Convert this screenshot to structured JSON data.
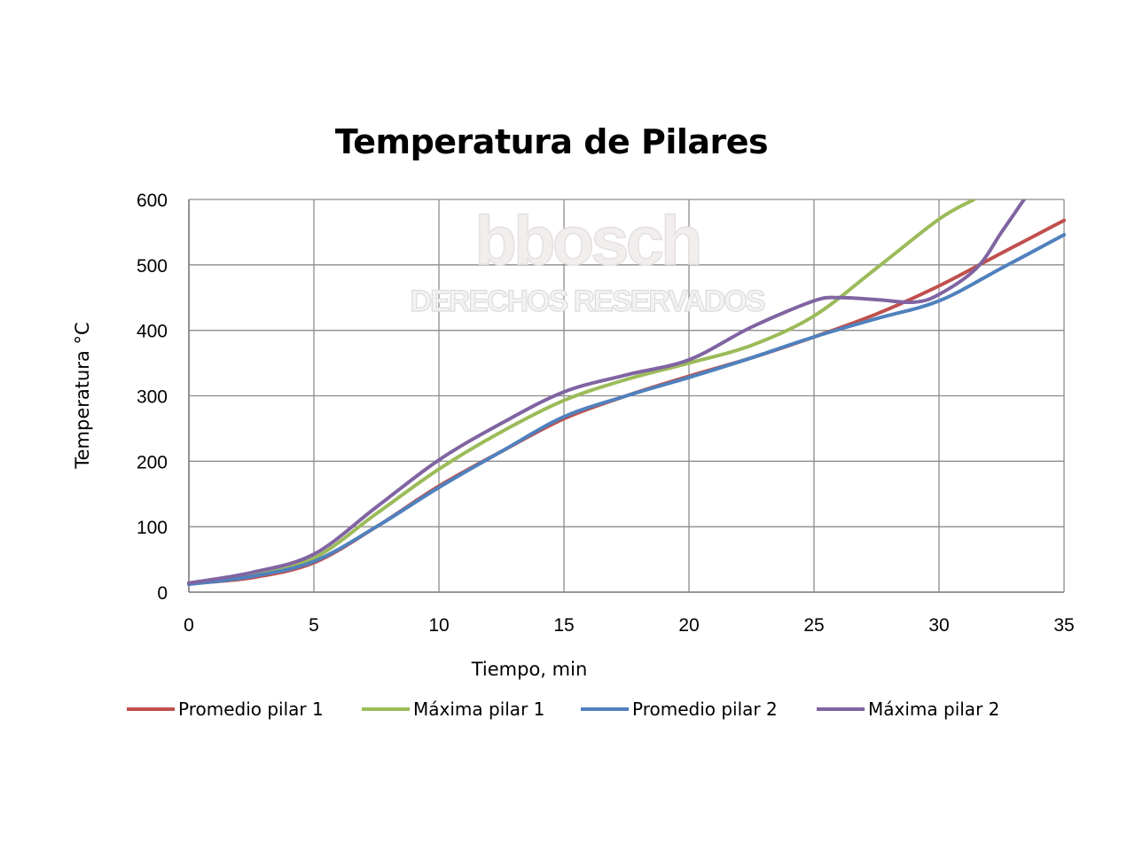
{
  "chart_data": {
    "type": "line",
    "title": "Temperatura de Pilares",
    "xlabel": "Tiempo, min",
    "ylabel": "Temperatura °C",
    "xlim": [
      0,
      35
    ],
    "ylim": [
      0,
      600
    ],
    "xticks": [
      0,
      5,
      10,
      15,
      20,
      25,
      30,
      35
    ],
    "yticks": [
      0,
      100,
      200,
      300,
      400,
      500,
      600
    ],
    "grid": true,
    "legend_position": "bottom",
    "series": [
      {
        "name": "Promedio pilar 1",
        "color": "#c0504d",
        "points": [
          [
            0,
            13
          ],
          [
            2.5,
            22
          ],
          [
            5,
            45
          ],
          [
            7.5,
            100
          ],
          [
            10,
            162
          ],
          [
            12.5,
            215
          ],
          [
            15,
            265
          ],
          [
            17.5,
            300
          ],
          [
            20,
            330
          ],
          [
            22.5,
            358
          ],
          [
            25,
            390
          ],
          [
            27.5,
            425
          ],
          [
            30,
            468
          ],
          [
            32.5,
            518
          ],
          [
            35,
            568
          ]
        ]
      },
      {
        "name": "Máxima pilar 1",
        "color": "#9bbb59",
        "points": [
          [
            0,
            14
          ],
          [
            2.5,
            27
          ],
          [
            5,
            52
          ],
          [
            7.5,
            120
          ],
          [
            10,
            188
          ],
          [
            12.5,
            245
          ],
          [
            15,
            293
          ],
          [
            17.5,
            325
          ],
          [
            20,
            350
          ],
          [
            22.5,
            377
          ],
          [
            25,
            422
          ],
          [
            27.5,
            495
          ],
          [
            30,
            570
          ],
          [
            31.4,
            600
          ]
        ]
      },
      {
        "name": "Promedio pilar 2",
        "color": "#4f81bd",
        "points": [
          [
            0,
            12
          ],
          [
            2.5,
            24
          ],
          [
            5,
            47
          ],
          [
            7.5,
            100
          ],
          [
            10,
            160
          ],
          [
            12.5,
            215
          ],
          [
            15,
            268
          ],
          [
            17.5,
            300
          ],
          [
            20,
            328
          ],
          [
            22.5,
            358
          ],
          [
            25,
            390
          ],
          [
            27.5,
            418
          ],
          [
            30,
            445
          ],
          [
            32.5,
            495
          ],
          [
            35,
            546
          ]
        ]
      },
      {
        "name": "Máxima pilar 2",
        "color": "#8064a2",
        "points": [
          [
            0,
            14
          ],
          [
            2.5,
            30
          ],
          [
            5,
            58
          ],
          [
            7.5,
            130
          ],
          [
            10,
            202
          ],
          [
            12.5,
            258
          ],
          [
            15,
            306
          ],
          [
            17.5,
            332
          ],
          [
            20,
            355
          ],
          [
            22.5,
            405
          ],
          [
            25,
            445
          ],
          [
            26,
            450
          ],
          [
            27.5,
            447
          ],
          [
            29,
            443
          ],
          [
            30,
            455
          ],
          [
            31.5,
            495
          ],
          [
            32.5,
            550
          ],
          [
            33.4,
            600
          ]
        ]
      }
    ]
  },
  "watermark": {
    "brand": "bbosch",
    "notice": "DERECHOS RESERVADOS"
  }
}
